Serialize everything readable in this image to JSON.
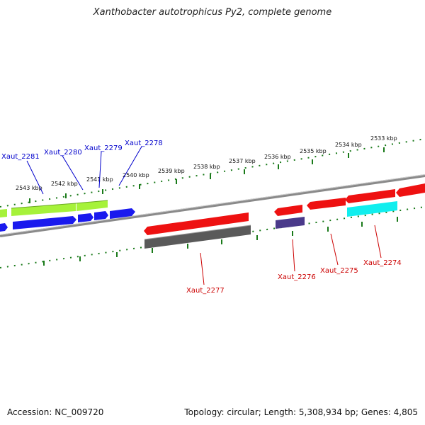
{
  "title": "Xanthobacter autotrophicus Py2, complete genome",
  "footer": {
    "accession": "Accession: NC_009720",
    "summary": "Topology: circular; Length: 5,308,934 bp; Genes: 4,805"
  },
  "colors": {
    "backbone": "#8a8a8a",
    "tick": "#1a7a1a",
    "forward_label": "#0000cc",
    "reverse_label": "#cc0000"
  },
  "ticks": [
    {
      "label": "2543 kbp"
    },
    {
      "label": "2542 kbp"
    },
    {
      "label": "2541 kbp"
    },
    {
      "label": "2540 kbp"
    },
    {
      "label": "2539 kbp"
    },
    {
      "label": "2538 kbp"
    },
    {
      "label": "2537 kbp"
    },
    {
      "label": "2536 kbp"
    },
    {
      "label": "2535 kbp"
    },
    {
      "label": "2534 kbp"
    },
    {
      "label": "2533 kbp"
    }
  ],
  "gene_labels": [
    {
      "name": "Xaut_2281",
      "strand": "forward"
    },
    {
      "name": "Xaut_2280",
      "strand": "forward"
    },
    {
      "name": "Xaut_2279",
      "strand": "forward"
    },
    {
      "name": "Xaut_2278",
      "strand": "forward"
    },
    {
      "name": "Xaut_2277",
      "strand": "reverse"
    },
    {
      "name": "Xaut_2276",
      "strand": "reverse"
    },
    {
      "name": "Xaut_2275",
      "strand": "reverse"
    },
    {
      "name": "Xaut_2274",
      "strand": "reverse"
    }
  ]
}
